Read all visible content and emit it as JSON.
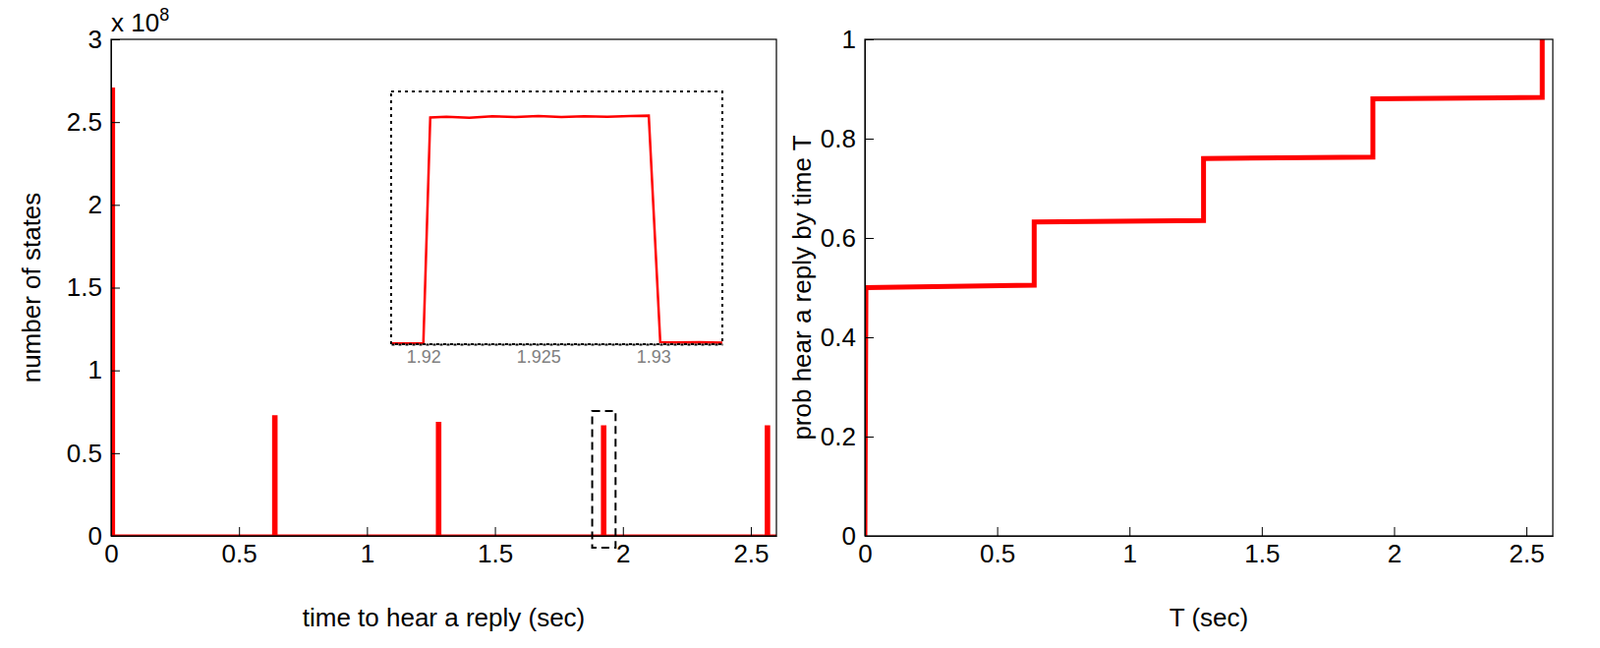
{
  "chart_data": [
    {
      "type": "line",
      "xlabel": "time to hear a reply (sec)",
      "ylabel": "number of states",
      "annotations": [
        {
          "text": "x 10",
          "sup": "8"
        }
      ],
      "x": [
        0,
        0,
        0.01,
        0.01,
        0.635,
        0.635,
        0.645,
        0.645,
        1.275,
        1.275,
        1.285,
        1.285,
        1.92,
        1.92,
        1.93,
        1.93,
        2.56,
        2.56,
        2.57,
        2.57,
        2.6
      ],
      "values": [
        0,
        2.7,
        2.7,
        0,
        0,
        0.72,
        0.72,
        0,
        0,
        0.68,
        0.68,
        0,
        0,
        0.66,
        0.66,
        0,
        0,
        0.66,
        0.66,
        0,
        0
      ],
      "color": "#ff0000",
      "xlim": [
        0,
        2.6
      ],
      "xticks": [
        0,
        0.5,
        1,
        1.5,
        2,
        2.5
      ],
      "ylim": [
        0,
        3
      ],
      "yticks": [
        0,
        0.5,
        1,
        1.5,
        2,
        2.5,
        3
      ],
      "grid": false
    },
    {
      "type": "line",
      "x": [
        1.9186,
        1.92,
        1.9203,
        1.921,
        1.922,
        1.923,
        1.924,
        1.925,
        1.926,
        1.927,
        1.928,
        1.929,
        1.9298,
        1.9303,
        1.931,
        1.932,
        1.933
      ],
      "values": [
        0.002,
        0.002,
        0.655,
        0.657,
        0.654,
        0.658,
        0.656,
        0.659,
        0.656,
        0.658,
        0.657,
        0.659,
        0.66,
        0.006,
        0.005,
        0.006,
        0.004
      ],
      "color": "#ff0000",
      "xlim": [
        1.9186,
        1.933
      ],
      "xticks": [
        1.92,
        1.925,
        1.93
      ],
      "ylim": [
        0,
        0.73
      ],
      "tick_labels": "x",
      "grid": false
    },
    {
      "type": "line",
      "xlabel": "T (sec)",
      "ylabel": "prob hear a reply by time T",
      "x": [
        0,
        0.004,
        0.64,
        0.64,
        1.28,
        1.28,
        1.92,
        1.92,
        2.56,
        2.56
      ],
      "values": [
        0,
        0.5,
        0.505,
        0.632,
        0.635,
        0.76,
        0.763,
        0.88,
        0.883,
        1.0
      ],
      "color": "#ff0000",
      "xlim": [
        0,
        2.6
      ],
      "xticks": [
        0,
        0.5,
        1,
        1.5,
        2,
        2.5
      ],
      "ylim": [
        0,
        1
      ],
      "yticks": [
        0,
        0.2,
        0.4,
        0.6,
        0.8,
        1
      ],
      "grid": false
    }
  ]
}
